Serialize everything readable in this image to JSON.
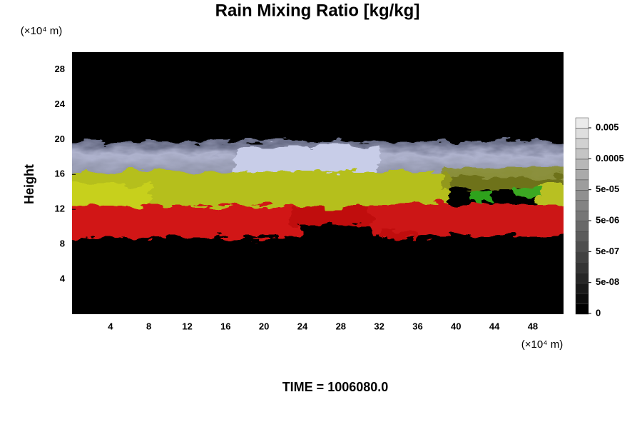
{
  "chart_data": {
    "type": "image",
    "title": "Rain Mixing Ratio [kg/kg]",
    "y_label": "Height",
    "x_unit": "(×10⁴ m)",
    "y_unit": "(×10⁴ m)",
    "xlim": [
      0,
      51.2
    ],
    "xticks": [
      4,
      8,
      12,
      16,
      20,
      24,
      28,
      32,
      36,
      40,
      44,
      48
    ],
    "ylim": [
      0,
      30
    ],
    "yticks": [
      4,
      8,
      12,
      16,
      20,
      24,
      28
    ],
    "colorbar_ticks": [
      {
        "value": 0.005,
        "label": "0.005"
      },
      {
        "value": 0.0005,
        "label": "0.0005"
      },
      {
        "value": 5e-05,
        "label": "5e-05"
      },
      {
        "value": 5e-06,
        "label": "5e-06"
      },
      {
        "value": 5e-07,
        "label": "5e-07"
      },
      {
        "value": 5e-08,
        "label": "5e-08"
      },
      0
    ],
    "footer": "TIME = 1006080.0"
  }
}
